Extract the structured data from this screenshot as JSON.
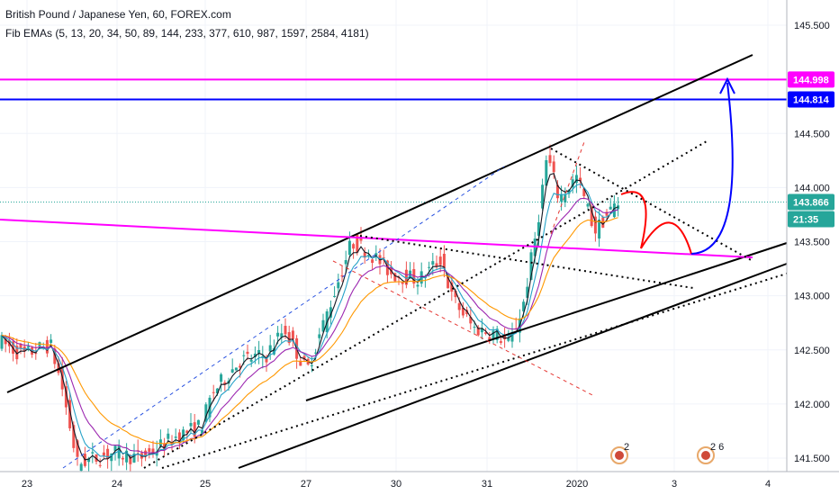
{
  "header": {
    "title": "British Pound / Japanese Yen, 60, FOREX.com",
    "indicator": "Fib EMAs (5, 13, 20, 34, 50, 89, 144, 233, 377, 610, 987, 1597, 2584, 4181)"
  },
  "chart_data": {
    "type": "candlestick",
    "symbol": "GBPJPY",
    "timeframe": "60",
    "y_axis": {
      "range": [
        141.4,
        145.85
      ],
      "ticks": [
        "145.500",
        "145.000",
        "144.500",
        "144.000",
        "143.500",
        "143.000",
        "142.500",
        "142.000",
        "141.500"
      ]
    },
    "x_axis": {
      "ticks": [
        "23",
        "24",
        "25",
        "27",
        "30",
        "31",
        "2020",
        "3",
        "4"
      ]
    },
    "price_labels": [
      {
        "value": "144.998",
        "color": "#ff00ff"
      },
      {
        "value": "144.814",
        "color": "#0000ff"
      },
      {
        "value": "143.866",
        "color": "#26a69a"
      },
      {
        "value": "21:35",
        "color": "#26a69a"
      }
    ],
    "horizontal_levels": [
      {
        "value": 144.998,
        "color": "#ff00ff"
      },
      {
        "value": 144.814,
        "color": "#0000ff"
      },
      {
        "value": 143.866,
        "color": "#26a69a",
        "style": "dotted"
      }
    ],
    "event_badges": [
      {
        "count": "2"
      },
      {
        "count": "2 6"
      }
    ],
    "ema_colors": [
      "#131722",
      "#26a2c8",
      "#9c27b0",
      "#ff9800"
    ],
    "candle_colors": {
      "up": "#26a69a",
      "down": "#ef5350"
    }
  }
}
